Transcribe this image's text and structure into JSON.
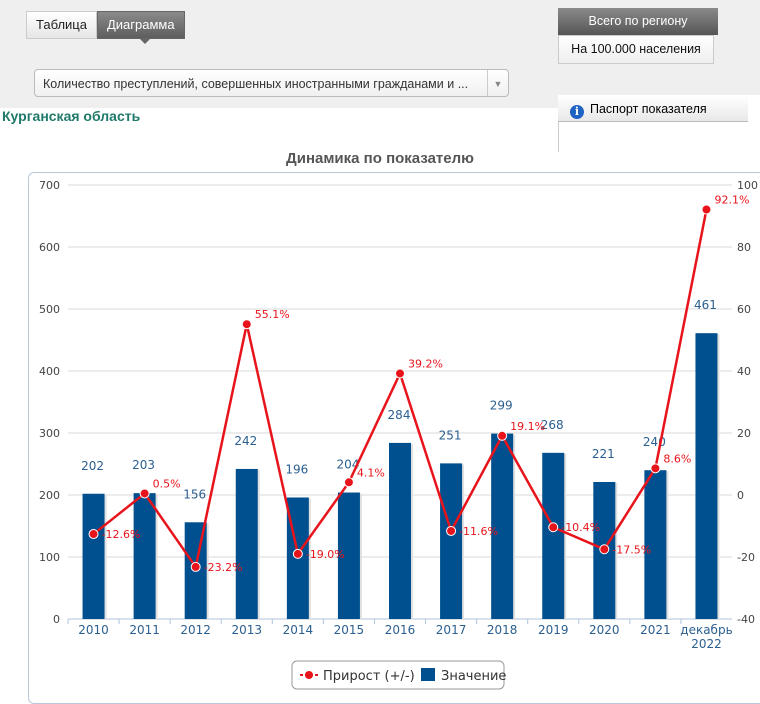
{
  "tabs": [
    {
      "label": "Таблица",
      "active": false
    },
    {
      "label": "Диаграмма",
      "active": true
    }
  ],
  "indicator_select": {
    "value": "Количество преступлений, совершенных иностранными гражданами и ..."
  },
  "buttons": {
    "total": "Всего по региону",
    "per100k": "На 100.000 населения",
    "passport": "Паспорт показателя"
  },
  "region": "Курганская область",
  "chart_data": {
    "type": "bar+line",
    "title": "Динамика по показателю",
    "categories": [
      "2010",
      "2011",
      "2012",
      "2013",
      "2014",
      "2015",
      "2016",
      "2017",
      "2018",
      "2019",
      "2020",
      "2021",
      "декабрь 2022"
    ],
    "series": [
      {
        "name": "Значение",
        "type": "bar",
        "axis": "left",
        "color": "#00508f",
        "values": [
          202,
          203,
          156,
          242,
          196,
          204,
          284,
          251,
          299,
          268,
          221,
          240,
          461
        ],
        "labels": [
          "202",
          "203",
          "156",
          "242",
          "196",
          "204",
          "284",
          "251",
          "299",
          "268",
          "221",
          "240",
          "461"
        ]
      },
      {
        "name": "Прирост (+/-)",
        "type": "line",
        "axis": "right",
        "color": "#e8141b",
        "values": [
          -12.6,
          0.5,
          -23.2,
          55.1,
          -19.0,
          4.1,
          39.2,
          -11.6,
          19.1,
          -10.4,
          -17.5,
          8.6,
          92.1
        ],
        "labels": [
          "-12.6%",
          "0.5%",
          "-23.2%",
          "55.1%",
          "-19.0%",
          "4.1%",
          "39.2%",
          "-11.6%",
          "19.1%",
          "-10.4%",
          "-17.5%",
          "8.6%",
          "92.1%"
        ]
      }
    ],
    "left_axis": {
      "range": [
        0,
        700
      ],
      "ticks": [
        "0",
        "100",
        "200",
        "300",
        "400",
        "500",
        "600",
        "700"
      ]
    },
    "right_axis": {
      "range": [
        -40,
        100
      ],
      "ticks": [
        "-40",
        "-20",
        "0",
        "20",
        "40",
        "60",
        "80",
        "100"
      ]
    },
    "grid": true,
    "legend": "bottom",
    "legend_items": [
      "Прирост (+/-)",
      "Значение"
    ]
  }
}
